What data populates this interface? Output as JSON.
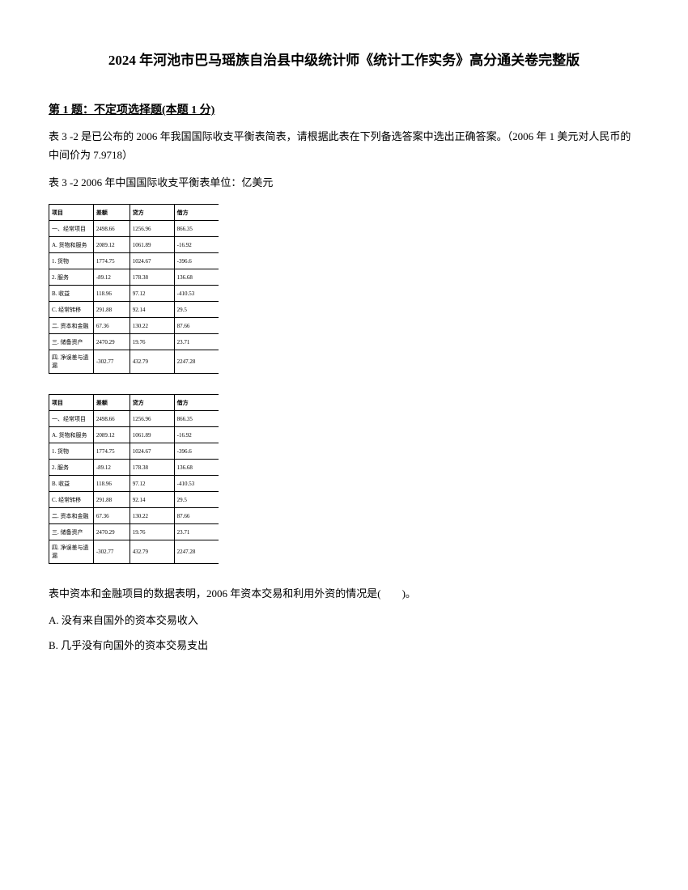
{
  "title": "2024 年河池市巴马瑶族自治县中级统计师《统计工作实务》高分通关卷完整版",
  "questionHeader": "第 1 题：不定项选择题(本题 1 分)",
  "paragraph1": "表 3 -2 是已公布的 2006 年我国国际收支平衡表简表，请根据此表在下列备选答案中选出正确答案。（2006 年 1 美元对人民币的中间价为 7.9718）",
  "paragraph2": "表 3 -2 2006 年中国国际收支平衡表单位：亿美元",
  "table": {
    "headers": [
      "项目",
      "差额",
      "贷方",
      "借方"
    ],
    "rows": [
      [
        "一、经常项目",
        "2498.66",
        "1256.96",
        "866.35"
      ],
      [
        "A. 货物和服务",
        "2089.12",
        "1061.89",
        "-16.92"
      ],
      [
        "1. 货物",
        "1774.75",
        "1024.67",
        "-396.6"
      ],
      [
        "2. 服务",
        "-89.12",
        "178.38",
        "136.68"
      ],
      [
        "B. 收益",
        "118.96",
        "97.12",
        "-410.53"
      ],
      [
        "C. 经常转移",
        "291.88",
        "92.14",
        "29.5"
      ],
      [
        "二. 资本和金融",
        "67.36",
        "130.22",
        "87.66"
      ],
      [
        "三. 储备资产",
        "2470.29",
        "19.76",
        "23.71"
      ],
      [
        "四. 净误差与遗漏",
        "-302.77",
        "432.79",
        "2247.28"
      ]
    ]
  },
  "questionText": "表中资本和金融项目的数据表明，2006 年资本交易和利用外资的情况是(　　)。",
  "optionA": "A. 没有来自国外的资本交易收入",
  "optionB": "B. 几乎没有向国外的资本交易支出"
}
